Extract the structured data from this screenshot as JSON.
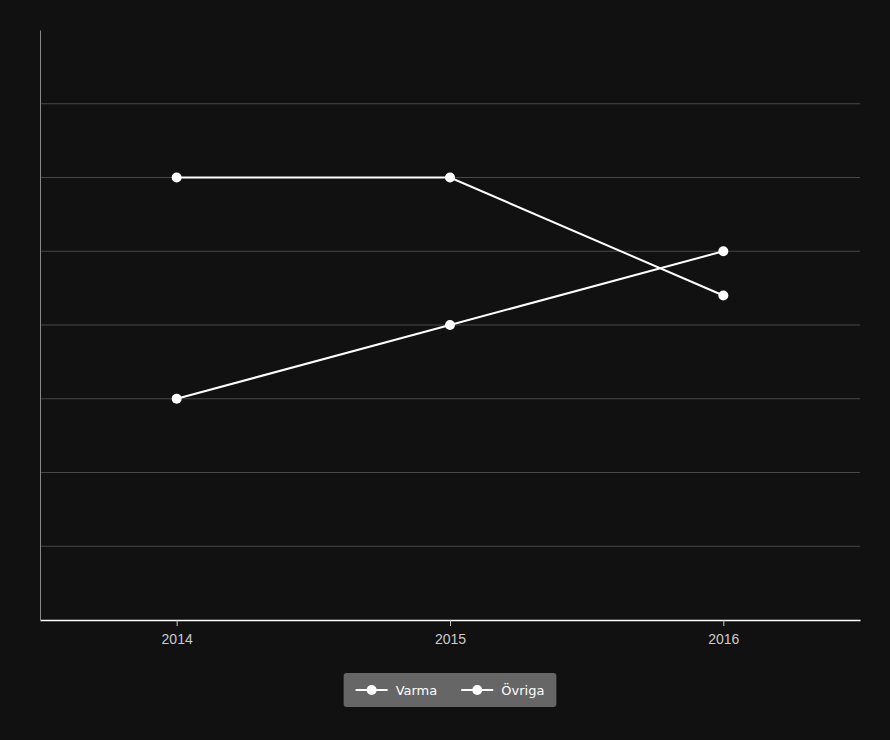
{
  "chart_data": {
    "type": "line",
    "x": [
      2014,
      2015,
      2016
    ],
    "series": [
      {
        "name": "Varma",
        "color": "#ffffff",
        "values": [
          60,
          60,
          44
        ]
      },
      {
        "name": "Övriga",
        "color": "#ffffff",
        "values": [
          30,
          40,
          50
        ]
      }
    ],
    "xlim": [
      2013.5,
      2016.5
    ],
    "xticks": [
      2014,
      2015,
      2016
    ],
    "ylim": [
      0,
      80
    ],
    "yticks": [
      10,
      20,
      30,
      40,
      50,
      60,
      70
    ],
    "grid": true,
    "tick_labels": "x",
    "legend": "bottom",
    "marker": "circle"
  }
}
